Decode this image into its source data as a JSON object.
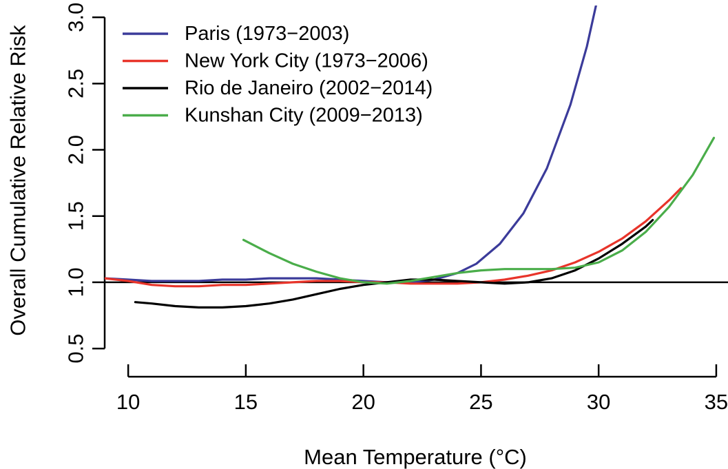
{
  "chart_data": {
    "type": "line",
    "title": "",
    "xlabel": "Mean Temperature (°C)",
    "ylabel": "Overall Cumulative Relative Risk",
    "xlim": [
      9,
      35.5
    ],
    "ylim": [
      0.5,
      3.0
    ],
    "xticks": [
      10,
      15,
      20,
      25,
      30,
      35
    ],
    "yticks": [
      0.5,
      1.0,
      1.5,
      2.0,
      2.5,
      3.0
    ],
    "xtick_labels": [
      "10",
      "15",
      "20",
      "25",
      "30",
      "35"
    ],
    "ytick_labels": [
      "0.5",
      "1.0",
      "1.5",
      "2.0",
      "2.5",
      "3.0"
    ],
    "reference_line": 1.0,
    "legend_position": "top-left",
    "series": [
      {
        "name": "Paris (1973−2003)",
        "color": "#3b3b9a",
        "x": [
          9,
          10,
          11,
          12,
          13,
          14,
          15,
          16,
          17,
          18,
          19,
          20,
          21,
          22,
          23,
          24,
          24.8,
          25.8,
          26.8,
          27.8,
          28.8,
          29.5,
          29.9
        ],
        "y": [
          1.03,
          1.02,
          1.01,
          1.01,
          1.01,
          1.02,
          1.02,
          1.03,
          1.03,
          1.03,
          1.02,
          1.01,
          1.0,
          1.0,
          1.02,
          1.07,
          1.14,
          1.29,
          1.52,
          1.86,
          2.34,
          2.78,
          3.1
        ]
      },
      {
        "name": "New York City (1973−2006)",
        "color": "#e8342a",
        "x": [
          9,
          10,
          11,
          12,
          13,
          14,
          15,
          16,
          17,
          18,
          19,
          20,
          21,
          22,
          23,
          24,
          25,
          26,
          27,
          28,
          29,
          30,
          31,
          32,
          33,
          33.5
        ],
        "y": [
          1.03,
          1.01,
          0.98,
          0.97,
          0.97,
          0.98,
          0.98,
          0.99,
          1.0,
          1.01,
          1.01,
          1.0,
          1.0,
          0.99,
          0.99,
          0.99,
          1.0,
          1.02,
          1.05,
          1.09,
          1.15,
          1.23,
          1.33,
          1.46,
          1.62,
          1.71
        ]
      },
      {
        "name": "Rio de Janeiro (2002−2014)",
        "color": "#000000",
        "x": [
          10.3,
          11,
          12,
          13,
          14,
          15,
          16,
          17,
          18,
          19,
          20,
          21,
          22,
          23,
          24,
          25,
          26,
          27,
          28,
          29,
          30,
          31,
          32,
          32.3
        ],
        "y": [
          0.85,
          0.84,
          0.82,
          0.81,
          0.81,
          0.82,
          0.84,
          0.87,
          0.91,
          0.95,
          0.98,
          1.0,
          1.02,
          1.02,
          1.01,
          1.0,
          0.99,
          1.0,
          1.03,
          1.09,
          1.18,
          1.29,
          1.42,
          1.47
        ]
      },
      {
        "name": "Kunshan City (2009−2013)",
        "color": "#4aad4a",
        "x": [
          14.9,
          16,
          17,
          18,
          19,
          20,
          21,
          22,
          23,
          24,
          25,
          26,
          27,
          28,
          29,
          30,
          31,
          32,
          33,
          34,
          34.9
        ],
        "y": [
          1.32,
          1.22,
          1.14,
          1.08,
          1.03,
          1.0,
          0.99,
          1.01,
          1.04,
          1.07,
          1.09,
          1.1,
          1.1,
          1.1,
          1.11,
          1.15,
          1.24,
          1.38,
          1.57,
          1.81,
          2.09
        ]
      }
    ]
  }
}
